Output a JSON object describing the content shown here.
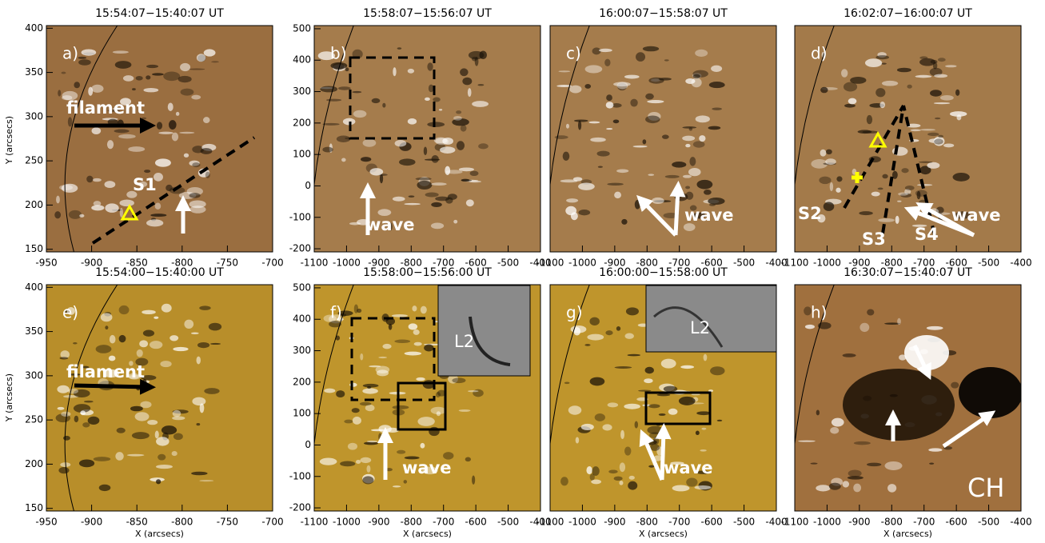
{
  "figure": {
    "y_axis_label": "Y (arcsecs)",
    "x_axis_label": "X (arcsecs)"
  },
  "panels": [
    {
      "label": "a)",
      "title": "15:54:07−15:40:07 UT",
      "xlim": [
        -950,
        -700
      ],
      "ylim": [
        147,
        403
      ],
      "xticks": [
        -950,
        -900,
        -850,
        -800,
        -750,
        -700
      ],
      "yticks": [
        150,
        200,
        250,
        300,
        350,
        400
      ],
      "annotations": [
        "filament",
        "S1"
      ]
    },
    {
      "label": "b)",
      "title": "15:58:07−15:56:07 UT",
      "xlim": [
        -1100,
        -400
      ],
      "ylim": [
        -210,
        510
      ],
      "xticks": [
        -1100,
        -1000,
        -900,
        -800,
        -700,
        -600,
        -500,
        -400
      ],
      "yticks": [
        -200,
        -100,
        0,
        100,
        200,
        300,
        400,
        500
      ],
      "annotations": [
        "wave"
      ]
    },
    {
      "label": "c)",
      "title": "16:00:07−15:58:07 UT",
      "xlim": [
        -1100,
        -400
      ],
      "ylim": [
        -210,
        510
      ],
      "xticks": [
        -1100,
        -1000,
        -900,
        -800,
        -700,
        -600,
        -500,
        -400
      ],
      "annotations": [
        "wave"
      ]
    },
    {
      "label": "d)",
      "title": "16:02:07−16:00:07 UT",
      "xlim": [
        -1100,
        -400
      ],
      "ylim": [
        -210,
        510
      ],
      "xticks": [
        -1100,
        -1000,
        -900,
        -800,
        -700,
        -600,
        -500,
        -400
      ],
      "annotations": [
        "S2",
        "S3",
        "S4",
        "wave"
      ]
    },
    {
      "label": "e)",
      "title": "15:54:00−15:40:00 UT",
      "xlim": [
        -950,
        -700
      ],
      "ylim": [
        147,
        403
      ],
      "xticks": [
        -950,
        -900,
        -850,
        -800,
        -750,
        -700
      ],
      "yticks": [
        150,
        200,
        250,
        300,
        350,
        400
      ],
      "annotations": [
        "filament"
      ]
    },
    {
      "label": "f)",
      "title": "15:58:00−15:56:00 UT",
      "xlim": [
        -1100,
        -400
      ],
      "ylim": [
        -210,
        510
      ],
      "xticks": [
        -1100,
        -1000,
        -900,
        -800,
        -700,
        -600,
        -500,
        -400
      ],
      "yticks": [
        -200,
        -100,
        0,
        100,
        200,
        300,
        400,
        500
      ],
      "annotations": [
        "wave",
        "L2"
      ]
    },
    {
      "label": "g)",
      "title": "16:00:00−15:58:00 UT",
      "xlim": [
        -1100,
        -400
      ],
      "ylim": [
        -210,
        510
      ],
      "xticks": [
        -1100,
        -1000,
        -900,
        -800,
        -700,
        -600,
        -500,
        -400
      ],
      "annotations": [
        "wave",
        "L2"
      ]
    },
    {
      "label": "h)",
      "title": "16:30:07−15:40:07 UT",
      "xlim": [
        -1100,
        -400
      ],
      "ylim": [
        -210,
        510
      ],
      "xticks": [
        -1100,
        -1000,
        -900,
        -800,
        -700,
        -600,
        -500,
        -400
      ],
      "annotations": [
        "CH"
      ]
    }
  ]
}
